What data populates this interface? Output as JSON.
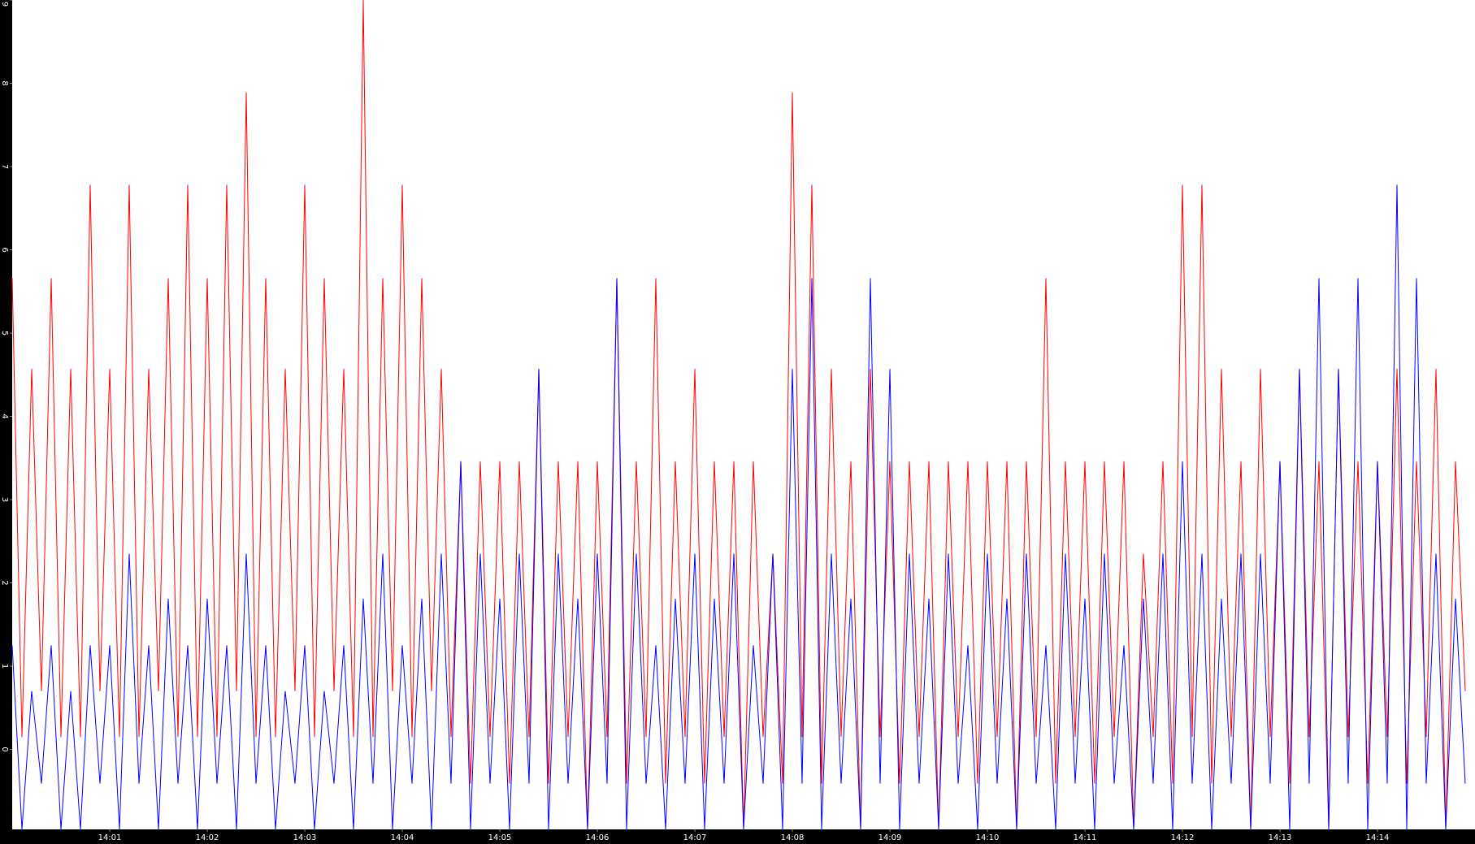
{
  "chart_data": {
    "type": "line",
    "x": [
      840,
      840.1,
      840.2,
      840.3,
      840.4,
      840.5,
      840.6,
      840.7,
      840.8,
      840.9,
      841,
      841.1,
      841.2,
      841.3,
      841.4,
      841.5,
      841.6,
      841.7,
      841.8,
      841.9,
      842,
      842.1,
      842.2,
      842.3,
      842.4,
      842.5,
      842.6,
      842.7,
      842.8,
      842.9,
      843,
      843.1,
      843.2,
      843.3,
      843.4,
      843.5,
      843.6,
      843.7,
      843.8,
      843.9,
      844,
      844.1,
      844.2,
      844.3,
      844.4,
      844.5,
      844.6,
      844.7,
      844.8,
      844.9,
      845,
      845.1,
      845.2,
      845.3,
      845.4,
      845.5,
      845.6,
      845.7,
      845.8,
      845.9,
      846,
      846.1,
      846.2,
      846.3,
      846.4,
      846.5,
      846.6,
      846.7,
      846.8,
      846.9,
      847,
      847.1,
      847.2,
      847.3,
      847.4,
      847.5,
      847.6,
      847.7,
      847.8,
      847.9,
      848,
      848.1,
      848.2,
      848.3,
      848.4,
      848.5,
      848.6,
      848.7,
      848.8,
      848.9,
      849,
      849.1,
      849.2,
      849.3,
      849.4,
      849.5,
      849.6,
      849.7,
      849.8,
      849.9,
      850,
      850.1,
      850.2,
      850.3,
      850.4,
      850.5,
      850.6,
      850.7,
      850.8,
      850.9,
      851,
      851.1,
      851.2,
      851.3,
      851.4,
      851.5,
      851.6,
      851.7,
      851.8,
      851.9,
      852,
      852.1,
      852.2,
      852.3,
      852.4,
      852.5,
      852.6,
      852.7,
      852.8,
      852.9,
      853,
      853.1,
      853.2,
      853.3,
      853.4,
      853.5,
      853.6,
      853.7,
      853.8,
      853.9,
      854,
      854.1,
      854.2,
      854.3,
      854.4,
      854.5,
      854.6,
      854.7,
      854.8,
      854.9
    ],
    "series": [
      {
        "color": "#ff0000",
        "values": [
          5.66,
          0.15,
          4.57,
          0.7,
          5.66,
          0.15,
          4.57,
          0.15,
          6.78,
          0.7,
          4.57,
          0.15,
          6.78,
          0.15,
          4.57,
          0.7,
          5.66,
          0.15,
          6.78,
          0.15,
          5.66,
          0.15,
          6.78,
          0.7,
          7.89,
          0.15,
          5.66,
          0.15,
          4.57,
          0.7,
          6.78,
          0.15,
          5.66,
          0.7,
          4.57,
          0.15,
          9,
          0.15,
          5.66,
          0.7,
          6.78,
          0.15,
          5.66,
          0.7,
          4.57,
          0.15,
          3.46,
          -0.41,
          3.46,
          0.15,
          3.46,
          -0.41,
          3.46,
          0.15,
          4.57,
          -0.41,
          3.46,
          0.15,
          3.46,
          -0.96,
          3.46,
          0.15,
          5.66,
          -0.41,
          3.46,
          0.15,
          5.66,
          -0.41,
          3.46,
          0.15,
          4.57,
          -0.41,
          3.46,
          0.15,
          3.46,
          -0.96,
          3.46,
          0.15,
          2.35,
          -0.41,
          7.89,
          0.15,
          6.78,
          -0.41,
          4.57,
          0.15,
          3.46,
          -0.96,
          4.57,
          0.15,
          3.46,
          -0.41,
          3.46,
          0.15,
          3.46,
          -0.96,
          3.46,
          0.15,
          3.46,
          -0.41,
          3.46,
          0.15,
          3.46,
          -0.96,
          3.46,
          0.15,
          5.66,
          -0.41,
          3.46,
          0.15,
          3.46,
          -0.41,
          3.46,
          0.15,
          3.46,
          -0.96,
          2.35,
          0.15,
          3.46,
          -0.41,
          6.78,
          0.15,
          6.78,
          -0.41,
          4.57,
          0.15,
          3.46,
          -0.96,
          4.57,
          0.15,
          3.46,
          -0.41,
          4.57,
          0.15,
          3.46,
          -0.96,
          4.57,
          0.15,
          3.46,
          -0.41,
          3.46,
          0.15,
          4.57,
          -0.41,
          3.46,
          0.15,
          4.57,
          -0.96,
          3.46,
          0.7
        ]
      },
      {
        "color": "#0000ff",
        "values": [
          1.25,
          -0.96,
          0.7,
          -0.41,
          1.25,
          -0.96,
          0.7,
          -0.96,
          1.25,
          -0.41,
          1.25,
          -0.96,
          2.35,
          -0.41,
          1.25,
          -0.96,
          1.81,
          -0.41,
          1.25,
          -0.96,
          1.81,
          -0.41,
          1.25,
          -0.96,
          2.35,
          -0.41,
          1.25,
          -0.96,
          0.7,
          -0.41,
          1.25,
          -0.96,
          0.7,
          -0.41,
          1.25,
          -0.96,
          1.81,
          -0.41,
          2.35,
          -0.96,
          1.25,
          -0.41,
          1.81,
          -0.96,
          2.35,
          -0.41,
          3.46,
          -0.96,
          2.35,
          -0.41,
          1.81,
          -0.96,
          2.35,
          -0.41,
          4.57,
          -0.96,
          2.35,
          -0.41,
          1.81,
          -0.96,
          2.35,
          -0.41,
          5.66,
          -0.96,
          2.35,
          -0.41,
          1.25,
          -0.96,
          1.81,
          -0.41,
          2.35,
          -0.96,
          1.81,
          -0.41,
          2.35,
          -0.96,
          1.25,
          -0.41,
          2.35,
          -0.96,
          4.57,
          -0.41,
          5.66,
          -0.96,
          2.35,
          -0.41,
          1.81,
          -0.96,
          5.66,
          -0.41,
          4.57,
          -0.96,
          2.35,
          -0.41,
          1.81,
          -0.96,
          2.35,
          -0.41,
          1.25,
          -0.96,
          2.35,
          -0.41,
          1.81,
          -0.96,
          2.35,
          -0.41,
          1.25,
          -0.96,
          2.35,
          -0.41,
          1.81,
          -0.96,
          2.35,
          -0.41,
          1.25,
          -0.96,
          1.81,
          -0.41,
          2.35,
          -0.96,
          3.46,
          -0.41,
          2.35,
          -0.96,
          1.81,
          -0.41,
          2.35,
          -0.96,
          2.35,
          -0.41,
          3.46,
          -0.96,
          4.57,
          -0.41,
          5.66,
          -0.96,
          4.57,
          -0.41,
          5.66,
          -0.96,
          3.46,
          -0.41,
          6.78,
          -0.96,
          5.66,
          -0.41,
          2.35,
          -0.96,
          1.81,
          -0.41
        ]
      }
    ],
    "xlim": [
      840,
      855
    ],
    "xticks": [
      {
        "value": 841,
        "label": "14:01"
      },
      {
        "value": 842,
        "label": "14:02"
      },
      {
        "value": 843,
        "label": "14:03"
      },
      {
        "value": 844,
        "label": "14:04"
      },
      {
        "value": 845,
        "label": "14:05"
      },
      {
        "value": 846,
        "label": "14:06"
      },
      {
        "value": 847,
        "label": "14:07"
      },
      {
        "value": 848,
        "label": "14:08"
      },
      {
        "value": 849,
        "label": "14:09"
      },
      {
        "value": 850,
        "label": "14:10"
      },
      {
        "value": 851,
        "label": "14:11"
      },
      {
        "value": 852,
        "label": "14:12"
      },
      {
        "value": 853,
        "label": "14:13"
      },
      {
        "value": 854,
        "label": "14:14"
      }
    ],
    "ylim": [
      -0.96,
      9
    ],
    "yticks": [
      0,
      1,
      2,
      3,
      4,
      5,
      6,
      7,
      8,
      9
    ]
  }
}
